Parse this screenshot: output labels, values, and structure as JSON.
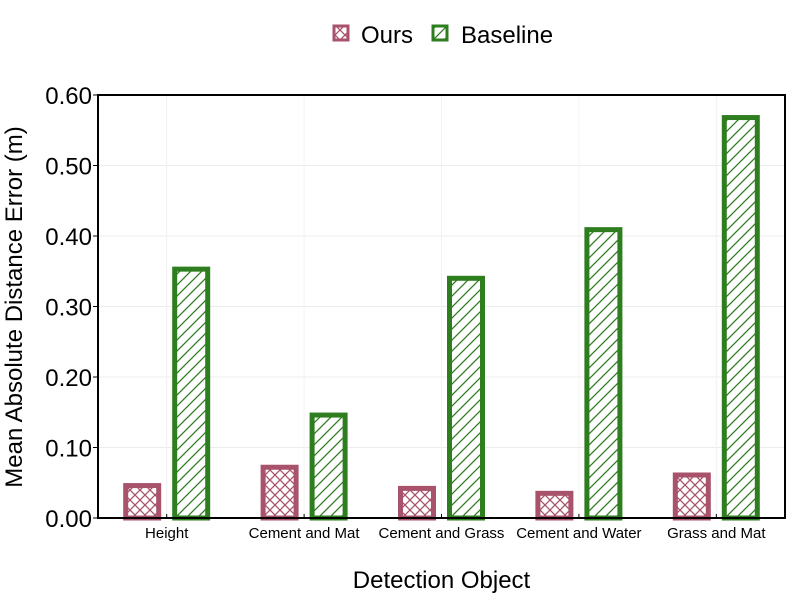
{
  "chart_data": {
    "type": "bar",
    "xlabel": "Detection Object",
    "ylabel": "Mean Absolute Distance Error (m)",
    "ylim": [
      0,
      0.6
    ],
    "yticks": [
      "0.00",
      "0.10",
      "0.20",
      "0.30",
      "0.40",
      "0.50",
      "0.60"
    ],
    "categories": [
      "Height",
      "Cement and Mat",
      "Cement and Grass",
      "Cement and Water",
      "Grass and Mat"
    ],
    "series": [
      {
        "name": "Ours",
        "values": [
          0.046,
          0.072,
          0.042,
          0.035,
          0.061
        ],
        "color": "#a8526b",
        "hatch": "crosshatch"
      },
      {
        "name": "Baseline",
        "values": [
          0.353,
          0.146,
          0.34,
          0.409,
          0.568
        ],
        "color": "#2e7d1f",
        "hatch": "diagonal"
      }
    ],
    "grid": true,
    "legend": "top-center"
  }
}
